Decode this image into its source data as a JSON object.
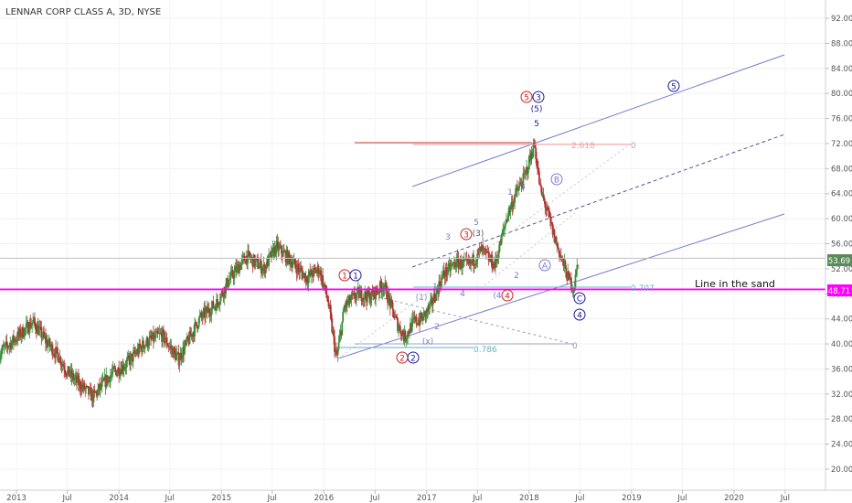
{
  "header": {
    "title": "LENNAR CORP CLASS A, 3D, NYSE"
  },
  "y_axis": {
    "ticks": [
      "92.00",
      "88.00",
      "84.00",
      "80.00",
      "76.00",
      "72.00",
      "68.00",
      "64.00",
      "60.00",
      "56.00",
      "52.00",
      "48.00",
      "44.00",
      "40.00",
      "36.00",
      "32.00",
      "28.00",
      "24.00",
      "20.00"
    ],
    "price_label": "53.69",
    "line_label": "48.71"
  },
  "x_axis": {
    "ticks": [
      "2013",
      "Jul",
      "2014",
      "Jul",
      "2015",
      "Jul",
      "2016",
      "Jul",
      "2017",
      "Jul",
      "2018",
      "Jul",
      "2019",
      "Jul",
      "2020",
      "Jul"
    ]
  },
  "colors": {
    "up": "#3a8f3a",
    "down": "#b03030",
    "sand_line": "#ff00ff",
    "channel": "#7b7bd0",
    "wave_red": "#cc2222",
    "wave_blue": "#1a1a99",
    "fib_teal": "#5ab4c8",
    "fib_pink": "#f0a0a0"
  },
  "annotations": {
    "line_in_the_sand": "Line in the sand",
    "fib_2618": "2.618",
    "fib_0707": "0.707",
    "fib_0786": "0.786",
    "zero": "0",
    "wave_1": "1",
    "wave_2": "2",
    "wave_3": "3",
    "wave_4": "4",
    "wave_5": "5",
    "wave_A": "A",
    "wave_B": "B",
    "wave_C": "C",
    "wave_p1": "(1)",
    "wave_p3": "(3)",
    "wave_p4": "(4",
    "wave_p5": "(5)",
    "wave_x": "(x)"
  },
  "chart_data": {
    "type": "candlestick",
    "title": "LENNAR CORP CLASS A, 3D, NYSE",
    "ylim": [
      18,
      94
    ],
    "x_range": [
      "2012-11-01",
      "2020-12-15"
    ],
    "last_price": 53.69,
    "horizontal_line": 48.71,
    "series": [
      {
        "name": "price",
        "dates": [
          "2012-11-01",
          "2013-01-01",
          "2013-03-01",
          "2013-04-15",
          "2013-06-01",
          "2013-07-01",
          "2013-08-15",
          "2013-10-01",
          "2013-12-01",
          "2014-02-01",
          "2014-04-01",
          "2014-06-01",
          "2014-08-01",
          "2014-10-15",
          "2014-12-15",
          "2015-02-01",
          "2015-04-01",
          "2015-06-01",
          "2015-07-15",
          "2015-09-01",
          "2015-11-01",
          "2015-12-15",
          "2016-01-15",
          "2016-02-15",
          "2016-03-15",
          "2016-05-01",
          "2016-06-15",
          "2016-08-01",
          "2016-09-15",
          "2016-10-15",
          "2016-11-15",
          "2016-12-15",
          "2017-01-15",
          "2017-03-01",
          "2017-04-15",
          "2017-06-01",
          "2017-07-15",
          "2017-09-01",
          "2017-10-15",
          "2017-11-15",
          "2017-12-15",
          "2018-01-20",
          "2018-02-10",
          "2018-03-01",
          "2018-04-01",
          "2018-05-01",
          "2018-05-20",
          "2018-06-10",
          "2018-06-25"
        ],
        "close": [
          38.5,
          41.0,
          43.5,
          40.5,
          38.0,
          35.5,
          33.5,
          31.5,
          35.0,
          37.0,
          40.0,
          41.5,
          37.5,
          44.0,
          46.5,
          50.5,
          54.0,
          52.0,
          55.5,
          53.5,
          50.5,
          52.0,
          47.0,
          37.5,
          46.0,
          48.0,
          47.5,
          49.5,
          43.5,
          41.0,
          43.5,
          44.0,
          46.0,
          51.0,
          53.0,
          52.5,
          55.0,
          52.5,
          60.5,
          64.0,
          66.5,
          72.0,
          64.5,
          62.0,
          57.0,
          53.0,
          50.5,
          48.9,
          53.69
        ]
      }
    ],
    "annotations_text": [
      "Line in the sand",
      "2.618",
      "0.707",
      "0.786"
    ]
  }
}
